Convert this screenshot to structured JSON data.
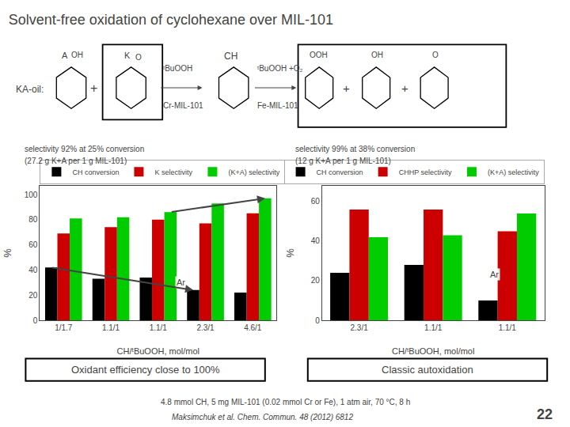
{
  "title": "Solvent-free oxidation of cyclohexane over MIL-101",
  "annotations": [
    "KA-oil:",
    "A",
    "OH",
    "+",
    "K",
    "O",
    "ᵗBuOOH",
    "Cr-MIL-101",
    "CH",
    "ᵗBuOOH +O₂",
    "Fe-MIL-101",
    "OOH",
    "+",
    "OH",
    "+",
    "O",
    "4.8 mmol CH, 5 mg MIL-101 (0.02 mmol Cr or Fe), 1 atm air, 70 °C, 8 h",
    "Maksimchuk et al. Chem. Commun. 48 (2012) 6812",
    "22"
  ],
  "chart_data": [
    {
      "type": "bar",
      "xlabel": "CH/ᵗBuOOH, mol/mol",
      "ylabel": "%",
      "categories": [
        "1/1.7",
        "1.1/1",
        "1.1/1",
        "2.3/1",
        "4.6/1"
      ],
      "series": [
        {
          "name": "CH conversion",
          "color": "#000000",
          "values": [
            42,
            33,
            34,
            24,
            22
          ]
        },
        {
          "name": "K selectivity",
          "color": "#cc0000",
          "values": [
            69,
            74,
            80,
            77,
            85
          ]
        },
        {
          "name": "(K+A) selectivity",
          "color": "#00cc00",
          "values": [
            81,
            82,
            86,
            93,
            97
          ]
        }
      ],
      "ylim": [
        0,
        107
      ],
      "yticks": [
        0,
        20,
        40,
        60,
        80,
        100
      ],
      "grid": false,
      "legend": "upper left",
      "annotations": [
        "selectivity 92% at 25% conversion",
        "(27.2 g K+A per 1 g MIL-101)",
        "Oxidant efficiency close to 100%",
        {
          "text": "Ar",
          "x": 2.35,
          "y": 25
        }
      ]
    },
    {
      "type": "bar",
      "xlabel": "CH/ᵗBuOOH, mol/mol",
      "ylabel": "%",
      "categories": [
        "2.3/1",
        "1.1/1",
        "1.1/1"
      ],
      "series": [
        {
          "name": "CH conversion",
          "color": "#000000",
          "values": [
            24,
            28,
            10
          ]
        },
        {
          "name": "CHHP selectivity",
          "color": "#cc0000",
          "values": [
            56,
            56,
            45
          ]
        },
        {
          "name": "(K+A) selectivity",
          "color": "#00cc00",
          "values": [
            42,
            43,
            54
          ]
        }
      ],
      "ylim": [
        0,
        68
      ],
      "yticks": [
        0,
        20,
        40,
        60
      ],
      "grid": false,
      "legend": "upper right",
      "annotations": [
        "selectivity 99% at 38% conversion",
        "(12 g K+A per 1 g MIL-101)",
        "Classic autoxidation",
        {
          "text": "Ar",
          "x": 1.75,
          "y": 20
        }
      ]
    }
  ]
}
